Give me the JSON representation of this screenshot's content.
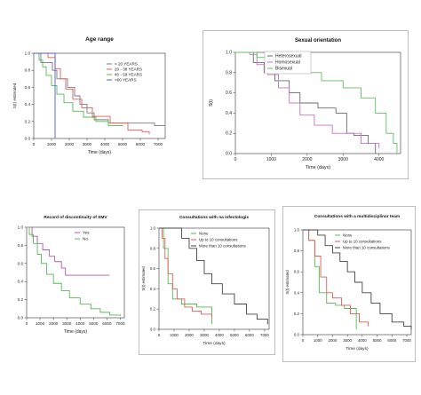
{
  "chart_data": [
    {
      "id": "age",
      "type": "line",
      "title": "Age range",
      "xlabel": "Time (days)",
      "ylabel": "S(t)  estimated",
      "xticks": [
        0,
        1000,
        2000,
        3000,
        4000,
        5000,
        6000,
        7000
      ],
      "yticks": [
        0.0,
        0.2,
        0.4,
        0.6,
        0.8,
        1.0
      ],
      "xlim": [
        0,
        7400
      ],
      "ylim": [
        0,
        1.0
      ],
      "legend_position": "top-right",
      "series": [
        {
          "name": "< 20 YEARS",
          "color": "#7a7a7a",
          "points": [
            [
              0,
              1.0
            ],
            [
              400,
              1.0
            ],
            [
              400,
              0.89
            ],
            [
              1050,
              0.89
            ],
            [
              1050,
              0.8
            ],
            [
              1300,
              0.8
            ],
            [
              1300,
              0.7
            ],
            [
              1900,
              0.6
            ],
            [
              2300,
              0.5
            ],
            [
              2600,
              0.4
            ],
            [
              3000,
              0.3
            ],
            [
              3400,
              0.22
            ],
            [
              4200,
              0.18
            ],
            [
              6800,
              0.15
            ],
            [
              7400,
              0.15
            ]
          ]
        },
        {
          "name": "20 - 38 YEARS",
          "color": "#e35a5a",
          "points": [
            [
              0,
              1.0
            ],
            [
              800,
              0.95
            ],
            [
              1200,
              0.82
            ],
            [
              1500,
              0.7
            ],
            [
              1800,
              0.58
            ],
            [
              2200,
              0.46
            ],
            [
              2700,
              0.36
            ],
            [
              3300,
              0.26
            ],
            [
              4300,
              0.18
            ],
            [
              5300,
              0.1
            ],
            [
              6100,
              0.08
            ],
            [
              6500,
              0.05
            ]
          ]
        },
        {
          "name": "40 - 59 YEARS",
          "color": "#55bb55",
          "points": [
            [
              0,
              1.0
            ],
            [
              300,
              0.92
            ],
            [
              500,
              0.84
            ],
            [
              700,
              0.74
            ],
            [
              1000,
              0.62
            ],
            [
              1300,
              0.52
            ],
            [
              1700,
              0.42
            ],
            [
              2200,
              0.32
            ],
            [
              2800,
              0.25
            ],
            [
              3500,
              0.2
            ],
            [
              4200,
              0.15
            ],
            [
              5000,
              0.14
            ]
          ]
        },
        {
          "name": ">60 YEARS",
          "color": "#5555dd",
          "points": [
            [
              0,
              1.0
            ],
            [
              1200,
              1.0
            ],
            [
              1200,
              0.0
            ]
          ]
        }
      ]
    },
    {
      "id": "sexual",
      "type": "line",
      "title": "Sexual orientation",
      "xlabel": "Time (days)",
      "ylabel": "S(t)",
      "xticks": [
        0,
        1000,
        2000,
        3000,
        4000
      ],
      "yticks": [
        0.0,
        0.2,
        0.4,
        0.6,
        0.8,
        1.0
      ],
      "xlim": [
        0,
        4600
      ],
      "ylim": [
        0,
        1.0
      ],
      "legend_position": "top-center",
      "series": [
        {
          "name": "Heterosexual",
          "color": "#6a6a6a",
          "points": [
            [
              0,
              1.0
            ],
            [
              300,
              1.0
            ],
            [
              500,
              0.9
            ],
            [
              800,
              0.8
            ],
            [
              1100,
              0.72
            ],
            [
              1500,
              0.6
            ],
            [
              1800,
              0.5
            ],
            [
              2300,
              0.45
            ],
            [
              2800,
              0.4
            ],
            [
              3100,
              0.2
            ],
            [
              3300,
              0.18
            ],
            [
              3700,
              0.1
            ],
            [
              3900,
              0.0
            ]
          ]
        },
        {
          "name": "Homosexual",
          "color": "#c774c7",
          "points": [
            [
              0,
              1.0
            ],
            [
              400,
              0.98
            ],
            [
              600,
              0.88
            ],
            [
              900,
              0.78
            ],
            [
              1200,
              0.65
            ],
            [
              1500,
              0.5
            ],
            [
              1800,
              0.38
            ],
            [
              2200,
              0.28
            ],
            [
              2700,
              0.2
            ],
            [
              3500,
              0.1
            ],
            [
              4000,
              0.05
            ]
          ]
        },
        {
          "name": "Bisexual",
          "color": "#66bb66",
          "points": [
            [
              0,
              1.0
            ],
            [
              600,
              0.95
            ],
            [
              1200,
              0.9
            ],
            [
              1800,
              0.8
            ],
            [
              2400,
              0.72
            ],
            [
              3000,
              0.65
            ],
            [
              3500,
              0.55
            ],
            [
              3900,
              0.4
            ],
            [
              4200,
              0.2
            ],
            [
              4400,
              0.1
            ],
            [
              4500,
              0.0
            ]
          ]
        }
      ]
    },
    {
      "id": "smv",
      "type": "line",
      "title": "Record of discontinuity of SMV",
      "xlabel": "Time (days)",
      "ylabel": "",
      "xticks": [
        0,
        1000,
        2000,
        3000,
        4000,
        5000,
        6000,
        7000
      ],
      "yticks": [
        0.0,
        0.2,
        0.4,
        0.6,
        0.8,
        1.0
      ],
      "xlim": [
        0,
        7300
      ],
      "ylim": [
        0,
        1.0
      ],
      "legend_position": "top-right",
      "series": [
        {
          "name": "Yes",
          "color": "#b35aa3",
          "points": [
            [
              0,
              1.0
            ],
            [
              400,
              0.9
            ],
            [
              800,
              0.82
            ],
            [
              1200,
              0.75
            ],
            [
              1700,
              0.68
            ],
            [
              2100,
              0.62
            ],
            [
              2600,
              0.55
            ],
            [
              2900,
              0.47
            ],
            [
              3300,
              0.47
            ],
            [
              6200,
              0.47
            ]
          ]
        },
        {
          "name": "No",
          "color": "#55bb55",
          "points": [
            [
              0,
              1.0
            ],
            [
              200,
              0.92
            ],
            [
              500,
              0.82
            ],
            [
              800,
              0.7
            ],
            [
              1100,
              0.6
            ],
            [
              1500,
              0.48
            ],
            [
              2000,
              0.38
            ],
            [
              2600,
              0.3
            ],
            [
              3200,
              0.22
            ],
            [
              4000,
              0.15
            ],
            [
              4800,
              0.1
            ],
            [
              5500,
              0.06
            ],
            [
              6200,
              0.03
            ],
            [
              7000,
              0.02
            ]
          ]
        }
      ]
    },
    {
      "id": "infect",
      "type": "line",
      "title": "Consultations with na infectologis",
      "xlabel": "Time (days)",
      "ylabel": "S(t) estimated",
      "xticks": [
        0,
        1000,
        2000,
        3000,
        4000,
        5000,
        6000,
        7000
      ],
      "yticks": [
        0.0,
        0.2,
        0.4,
        0.6,
        0.8,
        1.0
      ],
      "xlim": [
        0,
        7300
      ],
      "ylim": [
        0,
        1.0
      ],
      "legend_position": "top-right",
      "series": [
        {
          "name": "None",
          "color": "#55bb55",
          "points": [
            [
              0,
              1.0
            ],
            [
              300,
              0.8
            ],
            [
              600,
              0.45
            ],
            [
              900,
              0.3
            ],
            [
              1500,
              0.25
            ],
            [
              2500,
              0.22
            ],
            [
              3500,
              0.2
            ],
            [
              3500,
              0.05
            ]
          ]
        },
        {
          "name": "Up to 10 consultations",
          "color": "#e35a5a",
          "points": [
            [
              0,
              1.0
            ],
            [
              200,
              0.9
            ],
            [
              400,
              0.7
            ],
            [
              600,
              0.55
            ],
            [
              900,
              0.4
            ],
            [
              1200,
              0.3
            ],
            [
              1700,
              0.22
            ],
            [
              2200,
              0.18
            ],
            [
              2800,
              0.15
            ],
            [
              3500,
              0.12
            ]
          ]
        },
        {
          "name": "More than 10 consultations",
          "color": "#444444",
          "points": [
            [
              0,
              1.0
            ],
            [
              1000,
              1.0
            ],
            [
              1500,
              0.9
            ],
            [
              2000,
              0.8
            ],
            [
              2500,
              0.68
            ],
            [
              3000,
              0.55
            ],
            [
              3500,
              0.45
            ],
            [
              4200,
              0.35
            ],
            [
              5000,
              0.25
            ],
            [
              5800,
              0.15
            ],
            [
              6500,
              0.1
            ],
            [
              7200,
              0.05
            ]
          ]
        }
      ]
    },
    {
      "id": "multi",
      "type": "line",
      "title": "Consultations with a multidisciplinar team",
      "xlabel": "Time (days)",
      "ylabel": "S(t) estimated",
      "xticks": [
        0,
        1000,
        2000,
        3000,
        4000,
        5000,
        6000,
        7000
      ],
      "yticks": [
        0.0,
        0.2,
        0.4,
        0.6,
        0.8,
        1.0
      ],
      "xlim": [
        0,
        7300
      ],
      "ylim": [
        0,
        1.0
      ],
      "legend_position": "top-right",
      "series": [
        {
          "name": "None",
          "color": "#55bb55",
          "points": [
            [
              0,
              1.0
            ],
            [
              400,
              0.9
            ],
            [
              800,
              0.65
            ],
            [
              1100,
              0.4
            ],
            [
              1600,
              0.3
            ],
            [
              2200,
              0.28
            ],
            [
              2800,
              0.25
            ],
            [
              3600,
              0.2
            ],
            [
              3600,
              0.05
            ]
          ]
        },
        {
          "name": "Up to 10 consultations",
          "color": "#e35a5a",
          "points": [
            [
              0,
              1.0
            ],
            [
              400,
              0.9
            ],
            [
              800,
              0.75
            ],
            [
              1200,
              0.55
            ],
            [
              1600,
              0.4
            ],
            [
              2000,
              0.35
            ],
            [
              2600,
              0.28
            ],
            [
              3200,
              0.2
            ],
            [
              3800,
              0.12
            ],
            [
              4400,
              0.08
            ]
          ]
        },
        {
          "name": "More than 10 consultations",
          "color": "#444444",
          "points": [
            [
              0,
              1.0
            ],
            [
              1000,
              0.95
            ],
            [
              1500,
              0.85
            ],
            [
              2000,
              0.78
            ],
            [
              2500,
              0.7
            ],
            [
              3000,
              0.6
            ],
            [
              3500,
              0.5
            ],
            [
              4000,
              0.4
            ],
            [
              4600,
              0.3
            ],
            [
              5200,
              0.2
            ],
            [
              6000,
              0.12
            ],
            [
              6800,
              0.08
            ],
            [
              7300,
              0.05
            ]
          ]
        }
      ]
    }
  ]
}
